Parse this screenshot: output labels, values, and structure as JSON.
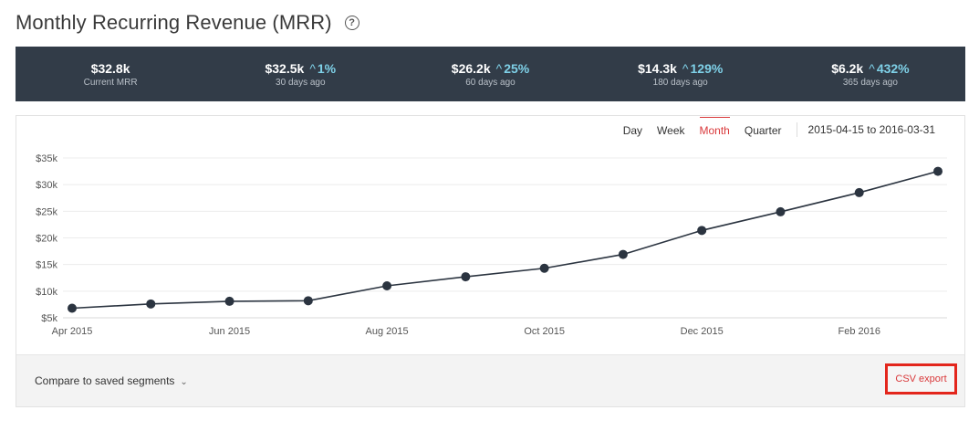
{
  "header": {
    "title": "Monthly Recurring Revenue (MRR)",
    "help_icon": "?"
  },
  "stats": [
    {
      "value": "$32.8k",
      "change": "",
      "label": "Current MRR"
    },
    {
      "value": "$32.5k",
      "change": "1%",
      "label": "30 days ago"
    },
    {
      "value": "$26.2k",
      "change": "25%",
      "label": "60 days ago"
    },
    {
      "value": "$14.3k",
      "change": "129%",
      "label": "180 days ago"
    },
    {
      "value": "$6.2k",
      "change": "432%",
      "label": "365 days ago"
    }
  ],
  "controls": {
    "tabs": [
      "Day",
      "Week",
      "Month",
      "Quarter"
    ],
    "active_tab": "Month",
    "date_range": "2015-04-15 to 2016-03-31"
  },
  "footer": {
    "compare_label": "Compare to saved segments",
    "csv_label": "CSV export"
  },
  "colors": {
    "accent": "#d9383a",
    "stats_bg": "#323c48",
    "line": "#2b3440",
    "change": "#7fd1e8"
  },
  "chart_data": {
    "type": "line",
    "x": [
      "2015-04",
      "2015-05",
      "2015-06",
      "2015-07",
      "2015-08",
      "2015-09",
      "2015-10",
      "2015-11",
      "2015-12",
      "2016-01",
      "2016-02",
      "2016-03"
    ],
    "x_tick_labels": [
      "Apr 2015",
      "Jun 2015",
      "Aug 2015",
      "Oct 2015",
      "Dec 2015",
      "Feb 2016"
    ],
    "y_tick_labels": [
      "$5k",
      "$10k",
      "$15k",
      "$20k",
      "$25k",
      "$30k",
      "$35k"
    ],
    "y_ticks": [
      5000,
      10000,
      15000,
      20000,
      25000,
      30000,
      35000
    ],
    "ylim": [
      5000,
      35000
    ],
    "series": [
      {
        "values": [
          6800,
          7600,
          8100,
          8200,
          11000,
          12700,
          14300,
          16900,
          21400,
          24900,
          28500,
          32500
        ]
      }
    ],
    "grid": true
  }
}
